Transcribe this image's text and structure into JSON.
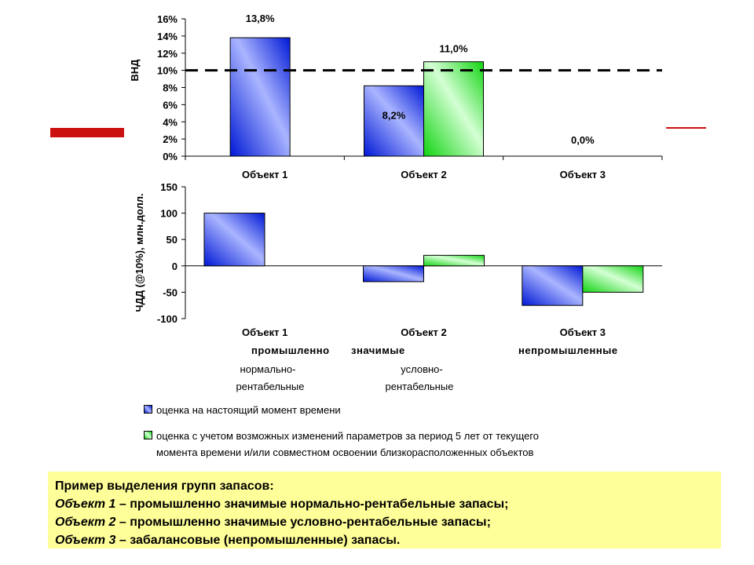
{
  "chart_data": [
    {
      "type": "bar",
      "categories": [
        "Объект 1",
        "Объект 2",
        "Объект 3"
      ],
      "ylabel": "ВНД",
      "ylim": [
        0,
        16
      ],
      "yticks": [
        "0%",
        "2%",
        "4%",
        "6%",
        "8%",
        "10%",
        "12%",
        "14%",
        "16%"
      ],
      "reference_line": 10,
      "series": [
        {
          "values": [
            13.8,
            8.2,
            null
          ],
          "color": "#0022dd"
        },
        {
          "values": [
            null,
            11.0,
            0.0
          ],
          "color": "#22dd22"
        }
      ],
      "data_labels": [
        "13,8%",
        "8,2%",
        "11,0%",
        "0,0%"
      ]
    },
    {
      "type": "bar",
      "categories": [
        "Объект 1",
        "Объект 2",
        "Объект 3"
      ],
      "ylabel": "ЧДД (@10%), млн.долл.",
      "ylim": [
        -100,
        150
      ],
      "yticks": [
        "-100",
        "-50",
        "0",
        "50",
        "100",
        "150"
      ],
      "series": [
        {
          "values": [
            100,
            -30,
            -75
          ],
          "color": "#0022dd"
        },
        {
          "values": [
            null,
            20,
            -50
          ],
          "color": "#22dd22"
        }
      ]
    }
  ],
  "annotations": {
    "group_bold_1": "промышленно",
    "group_bold_2": "значимые",
    "group_bold_3": "непромышленные",
    "sub_1_line1": "нормально-",
    "sub_1_line2": "рентабельные",
    "sub_2_line1": "условно-",
    "sub_2_line2": "рентабельные"
  },
  "legend": {
    "item1": "оценка на настоящий момент времени",
    "item2_line1": "оценка с учетом возможных изменений параметров за период 5 лет от текущего",
    "item2_line2": "момента времени и/или совместном освоении близкорасположенных объектов"
  },
  "note": {
    "title": "Пример выделения групп запасов:",
    "rows": [
      {
        "obj": "Объект 1",
        "text": " – промышленно значимые нормально-рентабельные запасы;"
      },
      {
        "obj": "Объект 2",
        "text": " – промышленно значимые условно-рентабельные запасы;"
      },
      {
        "obj": "Объект 3",
        "text": " – забалансовые (непромышленные) запасы."
      }
    ]
  },
  "colors": {
    "series1": "#0022dd",
    "series2": "#22dd22",
    "accent_red": "#cc1111",
    "note_bg": "#ffff99"
  }
}
